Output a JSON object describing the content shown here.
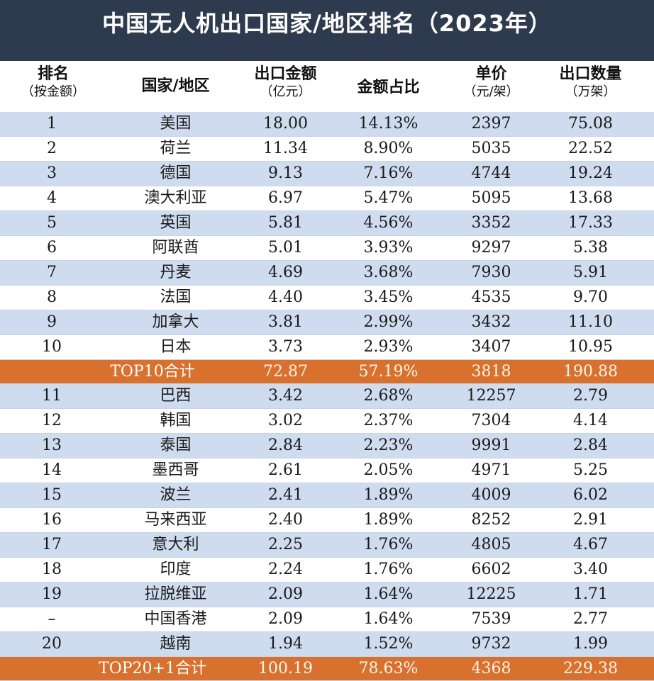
{
  "title": "中国无人机出口国家/地区排名（2023年）",
  "headers": {
    "rank": {
      "main": "排名",
      "sub": "（按金额）"
    },
    "country": {
      "main": "国家/地区",
      "sub": ""
    },
    "amount": {
      "main": "出口金额",
      "sub": "（亿元）"
    },
    "share": {
      "main": "金额占比",
      "sub": ""
    },
    "price": {
      "main": "单价",
      "sub": "（元/架）"
    },
    "qty": {
      "main": "出口数量",
      "sub": "（万架）"
    }
  },
  "rows": [
    {
      "type": "data",
      "rank": "1",
      "country": "美国",
      "amount": "18.00",
      "share": "14.13%",
      "price": "2397",
      "qty": "75.08"
    },
    {
      "type": "data",
      "rank": "2",
      "country": "荷兰",
      "amount": "11.34",
      "share": "8.90%",
      "price": "5035",
      "qty": "22.52"
    },
    {
      "type": "data",
      "rank": "3",
      "country": "德国",
      "amount": "9.13",
      "share": "7.16%",
      "price": "4744",
      "qty": "19.24"
    },
    {
      "type": "data",
      "rank": "4",
      "country": "澳大利亚",
      "amount": "6.97",
      "share": "5.47%",
      "price": "5095",
      "qty": "13.68"
    },
    {
      "type": "data",
      "rank": "5",
      "country": "英国",
      "amount": "5.81",
      "share": "4.56%",
      "price": "3352",
      "qty": "17.33"
    },
    {
      "type": "data",
      "rank": "6",
      "country": "阿联酋",
      "amount": "5.01",
      "share": "3.93%",
      "price": "9297",
      "qty": "5.38"
    },
    {
      "type": "data",
      "rank": "7",
      "country": "丹麦",
      "amount": "4.69",
      "share": "3.68%",
      "price": "7930",
      "qty": "5.91"
    },
    {
      "type": "data",
      "rank": "8",
      "country": "法国",
      "amount": "4.40",
      "share": "3.45%",
      "price": "4535",
      "qty": "9.70"
    },
    {
      "type": "data",
      "rank": "9",
      "country": "加拿大",
      "amount": "3.81",
      "share": "2.99%",
      "price": "3432",
      "qty": "11.10"
    },
    {
      "type": "data",
      "rank": "10",
      "country": "日本",
      "amount": "3.73",
      "share": "2.93%",
      "price": "3407",
      "qty": "10.95"
    },
    {
      "type": "total",
      "label": "TOP10合计",
      "amount": "72.87",
      "share": "57.19%",
      "price": "3818",
      "qty": "190.88"
    },
    {
      "type": "data",
      "rank": "11",
      "country": "巴西",
      "amount": "3.42",
      "share": "2.68%",
      "price": "12257",
      "qty": "2.79"
    },
    {
      "type": "data",
      "rank": "12",
      "country": "韩国",
      "amount": "3.02",
      "share": "2.37%",
      "price": "7304",
      "qty": "4.14"
    },
    {
      "type": "data",
      "rank": "13",
      "country": "泰国",
      "amount": "2.84",
      "share": "2.23%",
      "price": "9991",
      "qty": "2.84"
    },
    {
      "type": "data",
      "rank": "14",
      "country": "墨西哥",
      "amount": "2.61",
      "share": "2.05%",
      "price": "4971",
      "qty": "5.25"
    },
    {
      "type": "data",
      "rank": "15",
      "country": "波兰",
      "amount": "2.41",
      "share": "1.89%",
      "price": "4009",
      "qty": "6.02"
    },
    {
      "type": "data",
      "rank": "16",
      "country": "马来西亚",
      "amount": "2.40",
      "share": "1.89%",
      "price": "8252",
      "qty": "2.91"
    },
    {
      "type": "data",
      "rank": "17",
      "country": "意大利",
      "amount": "2.25",
      "share": "1.76%",
      "price": "4805",
      "qty": "4.67"
    },
    {
      "type": "data",
      "rank": "18",
      "country": "印度",
      "amount": "2.24",
      "share": "1.76%",
      "price": "6602",
      "qty": "3.40"
    },
    {
      "type": "data",
      "rank": "19",
      "country": "拉脱维亚",
      "amount": "2.09",
      "share": "1.64%",
      "price": "12225",
      "qty": "1.71"
    },
    {
      "type": "data",
      "rank": "–",
      "country": "中国香港",
      "amount": "2.09",
      "share": "1.64%",
      "price": "7539",
      "qty": "2.77"
    },
    {
      "type": "data",
      "rank": "20",
      "country": "越南",
      "amount": "1.94",
      "share": "1.52%",
      "price": "9732",
      "qty": "1.99"
    },
    {
      "type": "total",
      "label": "TOP20+1合计",
      "amount": "100.19",
      "share": "78.63%",
      "price": "4368",
      "qty": "229.38"
    }
  ]
}
